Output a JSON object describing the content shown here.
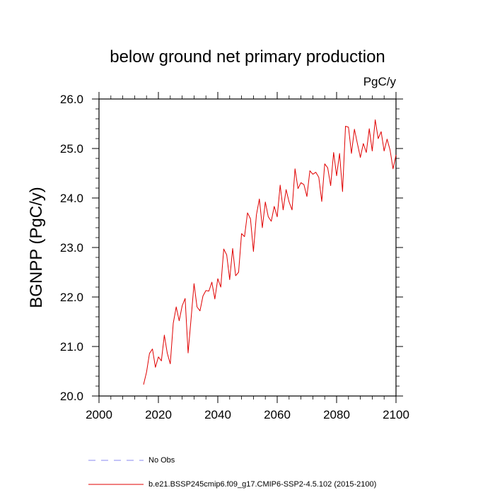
{
  "chart_data": {
    "type": "line",
    "title": "below ground net primary production",
    "units_label": "PgC/y",
    "ylabel": "BGNPP  (PgC/y)",
    "xlabel": "",
    "xlim": [
      2000,
      2100
    ],
    "ylim": [
      20.0,
      26.0
    ],
    "x_ticks": [
      2000,
      2020,
      2040,
      2060,
      2080,
      2100
    ],
    "x_tick_labels": [
      "2000",
      "2020",
      "2040",
      "2060",
      "2080",
      "2100"
    ],
    "y_ticks": [
      20.0,
      21.0,
      22.0,
      23.0,
      24.0,
      25.0,
      26.0
    ],
    "y_tick_labels": [
      "20.0",
      "21.0",
      "22.0",
      "23.0",
      "24.0",
      "25.0",
      "26.0"
    ],
    "grid": false,
    "legend_position": "bottom",
    "legend": [
      {
        "name": "No Obs",
        "color": "#8a8af0",
        "style": "dashed"
      },
      {
        "name": "b.e21.BSSP245cmip6.f09_g17.CMIP6-SSP2-4.5.102 (2015-2100)",
        "color": "#e00000",
        "style": "solid"
      }
    ],
    "series": [
      {
        "name": "b.e21.BSSP245cmip6.f09_g17.CMIP6-SSP2-4.5.102 (2015-2100)",
        "color": "#e00000",
        "x": [
          2015,
          2016,
          2017,
          2018,
          2019,
          2020,
          2021,
          2022,
          2023,
          2024,
          2025,
          2026,
          2027,
          2028,
          2029,
          2030,
          2031,
          2032,
          2033,
          2034,
          2035,
          2036,
          2037,
          2038,
          2039,
          2040,
          2041,
          2042,
          2043,
          2044,
          2045,
          2046,
          2047,
          2048,
          2049,
          2050,
          2051,
          2052,
          2053,
          2054,
          2055,
          2056,
          2057,
          2058,
          2059,
          2060,
          2061,
          2062,
          2063,
          2064,
          2065,
          2066,
          2067,
          2068,
          2069,
          2070,
          2071,
          2072,
          2073,
          2074,
          2075,
          2076,
          2077,
          2078,
          2079,
          2080,
          2081,
          2082,
          2083,
          2084,
          2085,
          2086,
          2087,
          2088,
          2089,
          2090,
          2091,
          2092,
          2093,
          2094,
          2095,
          2096,
          2097,
          2098,
          2099,
          2100
        ],
        "y": [
          20.23,
          20.48,
          20.86,
          20.95,
          20.58,
          20.79,
          20.71,
          21.23,
          20.86,
          20.65,
          21.47,
          21.8,
          21.52,
          21.82,
          21.97,
          20.87,
          21.56,
          22.27,
          21.8,
          21.72,
          22.02,
          22.13,
          22.12,
          22.3,
          21.96,
          22.37,
          22.2,
          22.97,
          22.85,
          22.35,
          22.98,
          22.43,
          22.5,
          23.28,
          23.22,
          23.7,
          23.58,
          22.92,
          23.66,
          23.98,
          23.4,
          23.92,
          23.62,
          23.53,
          23.83,
          23.62,
          24.26,
          23.76,
          24.17,
          23.92,
          23.76,
          24.59,
          24.19,
          24.31,
          24.27,
          24.03,
          24.55,
          24.48,
          24.52,
          24.42,
          23.93,
          24.69,
          24.61,
          24.25,
          24.92,
          24.45,
          24.9,
          24.13,
          25.45,
          25.43,
          24.9,
          25.39,
          25.1,
          24.82,
          25.1,
          24.92,
          25.4,
          24.95,
          25.58,
          25.2,
          25.34,
          24.95,
          25.19,
          24.97,
          24.59,
          24.87
        ]
      }
    ]
  }
}
